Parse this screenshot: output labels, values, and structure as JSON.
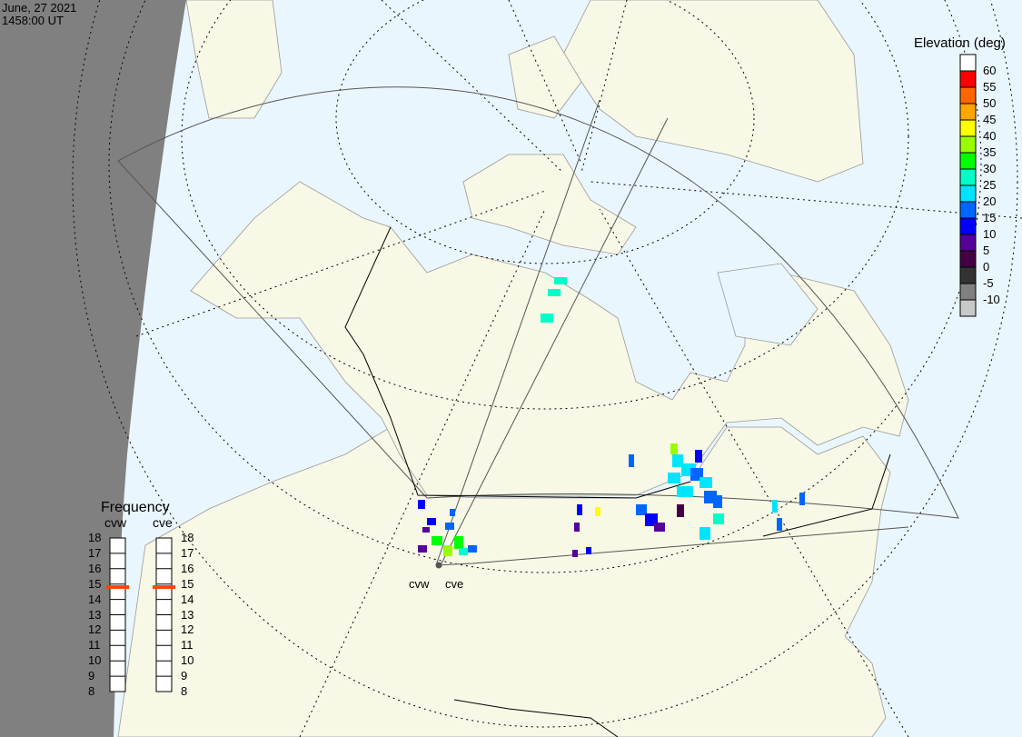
{
  "header": {
    "date": "June, 27 2021",
    "time": "1458:00 UT"
  },
  "legend": {
    "title": "Elevation (deg)",
    "levels": [
      {
        "label": "60",
        "color": "#ffffff"
      },
      {
        "label": "55",
        "color": "#ff0000"
      },
      {
        "label": "50",
        "color": "#ff6600"
      },
      {
        "label": "45",
        "color": "#ffa500"
      },
      {
        "label": "40",
        "color": "#ffff00"
      },
      {
        "label": "35",
        "color": "#99ff00"
      },
      {
        "label": "30",
        "color": "#00ff00"
      },
      {
        "label": "25",
        "color": "#00ffc8"
      },
      {
        "label": "20",
        "color": "#00e5ff"
      },
      {
        "label": "15",
        "color": "#0066ff"
      },
      {
        "label": "10",
        "color": "#0000ff"
      },
      {
        "label": "5",
        "color": "#550099"
      },
      {
        "label": "0",
        "color": "#440044"
      },
      {
        "label": "-5",
        "color": "#333333"
      },
      {
        "label": "-10",
        "color": "#808080"
      },
      {
        "label": "",
        "color": "#c8c8c8"
      }
    ]
  },
  "frequency": {
    "title": "Frequency",
    "scale": [
      "18",
      "17",
      "16",
      "15",
      "14",
      "13",
      "12",
      "11",
      "10",
      "9",
      "8"
    ],
    "radars": [
      {
        "name": "cvw",
        "value_mhz": 14.8
      },
      {
        "name": "cve",
        "value_mhz": 14.8
      }
    ],
    "marker_color": "#ff4400"
  },
  "map": {
    "radar_labels": [
      "cvw",
      "cve"
    ],
    "colors": {
      "ocean": "#eaf6fd",
      "land": "#f8f8e6",
      "night": "#808080"
    }
  }
}
